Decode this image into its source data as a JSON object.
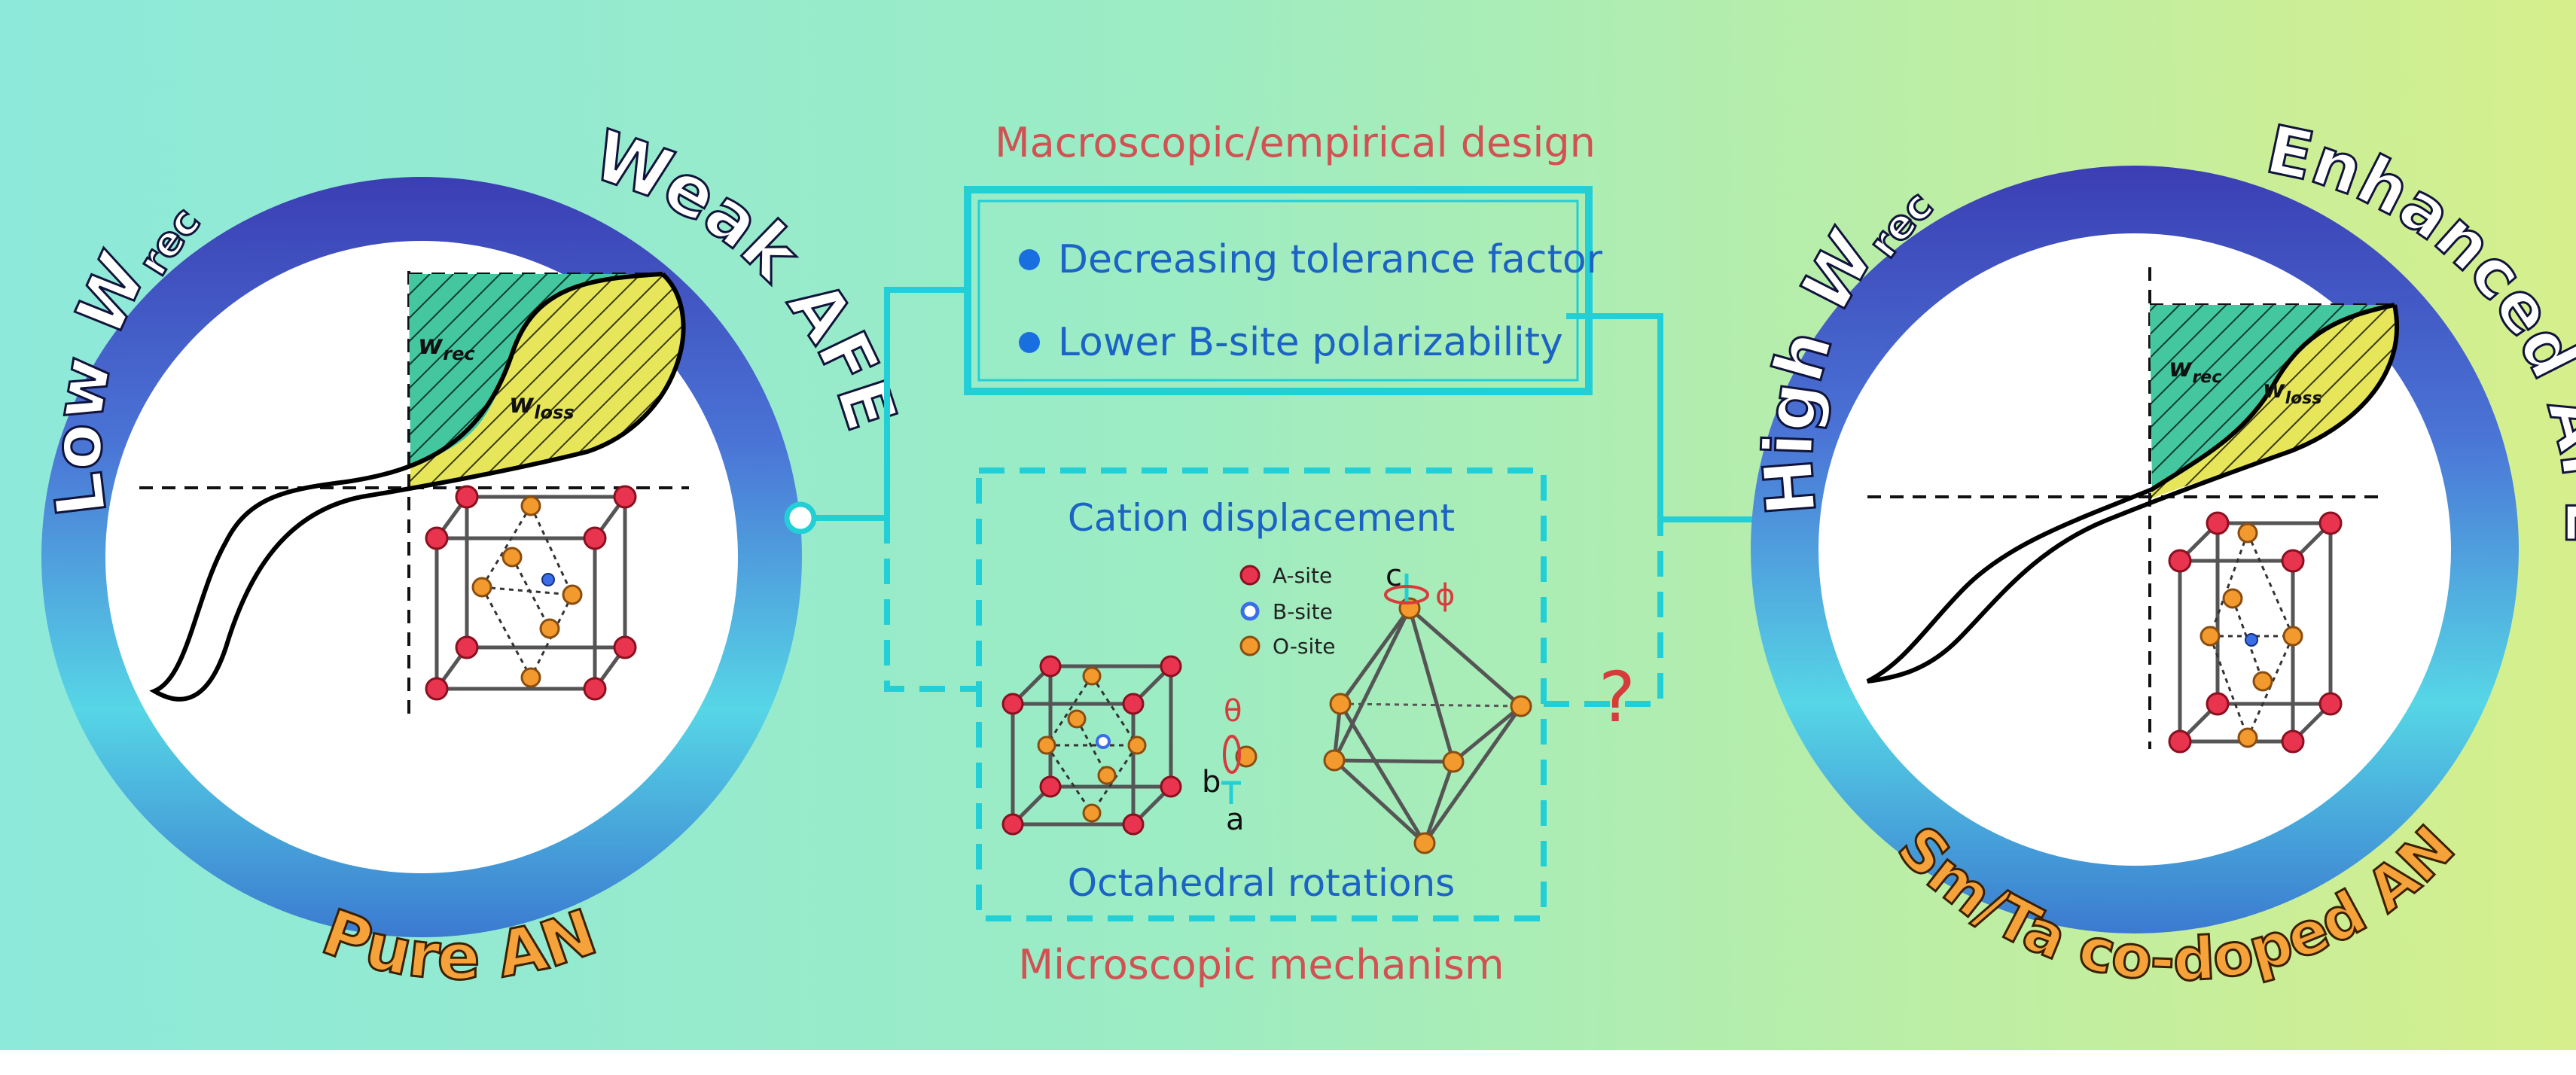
{
  "colors": {
    "bg_left": "#8ee8dc",
    "bg_right": "#d3ef8d",
    "ring_dark": "#3a3fb0",
    "ring_light": "#5fe0e4",
    "cyan": "#23cfd6",
    "title_red": "#d05252",
    "text_blue": "#1b63c4",
    "bullet_blue": "#1a6fe0",
    "a_site": "#e8344e",
    "b_site": "#3a6de8",
    "o_site": "#f29a2e",
    "hatch_green": "#3ec29a",
    "hatch_yellow": "#e6e45a",
    "question_red": "#d63c3c"
  },
  "left_ring": {
    "top_label_main": "Low ",
    "top_label_w": "W",
    "top_label_sub": "rec",
    "right_label": "Weak AFE",
    "bottom_label": "Pure AN",
    "hatch_rec_w": "w",
    "hatch_rec_sub": "rec",
    "hatch_loss_w": "w",
    "hatch_loss_sub": "loss"
  },
  "right_ring": {
    "top_label_main": "High ",
    "top_label_w": "W",
    "top_label_sub": "rec",
    "right_label": "Enhanced AFE",
    "bottom_label": "Sm/Ta co-doped AN",
    "hatch_rec_w": "w",
    "hatch_rec_sub": "rec",
    "hatch_loss_w": "w",
    "hatch_loss_sub": "loss"
  },
  "macro": {
    "heading": "Macroscopic/empirical design",
    "bullets": [
      "Decreasing tolerance factor",
      "Lower B-site polarizability"
    ]
  },
  "micro": {
    "heading": "Microscopic mechanism",
    "cation_title": "Cation displacement",
    "octa_title": "Octahedral rotations",
    "legend": [
      "A-site",
      "B-site",
      "O-site"
    ],
    "axis_c": "c",
    "axis_b": "b",
    "axis_a": "a",
    "theta": "θ",
    "phi": "ϕ",
    "question": "?"
  }
}
